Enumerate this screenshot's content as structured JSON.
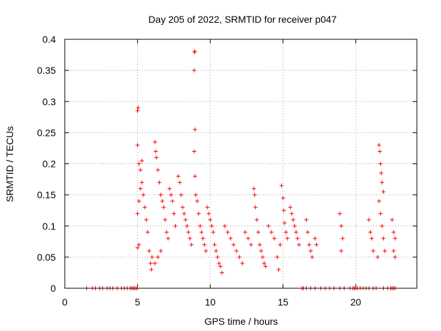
{
  "chart_data": {
    "type": "scatter",
    "title": "Day 205 of 2022, SRMTID for receiver p047",
    "xlabel": "GPS time / hours",
    "ylabel": "SRMTID / TECUs",
    "xlim": [
      0,
      24.2
    ],
    "ylim": [
      0,
      0.4
    ],
    "x_ticks": [
      0,
      5,
      10,
      15,
      20
    ],
    "x_tick_labels": [
      "0",
      "5",
      "10",
      "15",
      "20"
    ],
    "y_ticks": [
      0,
      0.05,
      0.1,
      0.15,
      0.2,
      0.25,
      0.3,
      0.35,
      0.4
    ],
    "y_tick_labels": [
      "0",
      "0.05",
      "0.1",
      "0.15",
      "0.2",
      "0.25",
      "0.3",
      "0.35",
      "0.4"
    ],
    "grid": true,
    "marker": "+",
    "color": "#ff0000",
    "series": [
      {
        "name": "SRMTID",
        "points": [
          [
            1.5,
            0
          ],
          [
            1.9,
            0
          ],
          [
            2.1,
            0
          ],
          [
            2.4,
            0
          ],
          [
            2.6,
            0
          ],
          [
            2.9,
            0
          ],
          [
            3.1,
            0
          ],
          [
            3.3,
            0
          ],
          [
            3.6,
            0
          ],
          [
            3.9,
            0
          ],
          [
            4.1,
            0
          ],
          [
            4.3,
            0
          ],
          [
            4.5,
            0
          ],
          [
            4.6,
            0
          ],
          [
            4.7,
            0
          ],
          [
            4.8,
            0
          ],
          [
            4.9,
            0
          ],
          [
            5.0,
            0
          ],
          [
            16.3,
            0
          ],
          [
            16.4,
            0
          ],
          [
            16.6,
            0
          ],
          [
            16.9,
            0
          ],
          [
            17.2,
            0
          ],
          [
            17.6,
            0
          ],
          [
            17.9,
            0
          ],
          [
            18.2,
            0
          ],
          [
            18.5,
            0
          ],
          [
            18.9,
            0
          ],
          [
            19.2,
            0
          ],
          [
            19.6,
            0
          ],
          [
            19.8,
            0
          ],
          [
            19.9,
            0
          ],
          [
            20.0,
            0
          ],
          [
            20.1,
            0
          ],
          [
            20.3,
            0
          ],
          [
            20.5,
            0
          ],
          [
            20.7,
            0
          ],
          [
            20.9,
            0
          ],
          [
            21.2,
            0
          ],
          [
            21.4,
            0
          ],
          [
            21.9,
            0
          ],
          [
            22.2,
            0
          ],
          [
            22.4,
            0
          ],
          [
            22.5,
            0
          ],
          [
            22.6,
            0
          ],
          [
            22.7,
            0
          ],
          [
            5.0,
            0.285
          ],
          [
            5.05,
            0.29
          ],
          [
            5.0,
            0.23
          ],
          [
            5.1,
            0.2
          ],
          [
            5.2,
            0.19
          ],
          [
            5.3,
            0.205
          ],
          [
            5.0,
            0.065
          ],
          [
            5.1,
            0.07
          ],
          [
            5.0,
            0.12
          ],
          [
            5.1,
            0.14
          ],
          [
            5.2,
            0.16
          ],
          [
            5.3,
            0.17
          ],
          [
            5.4,
            0.15
          ],
          [
            5.5,
            0.13
          ],
          [
            5.6,
            0.11
          ],
          [
            5.7,
            0.09
          ],
          [
            5.8,
            0.06
          ],
          [
            5.9,
            0.04
          ],
          [
            5.95,
            0.03
          ],
          [
            6.0,
            0.05
          ],
          [
            6.2,
            0.235
          ],
          [
            6.25,
            0.22
          ],
          [
            6.3,
            0.21
          ],
          [
            6.4,
            0.19
          ],
          [
            6.5,
            0.17
          ],
          [
            6.6,
            0.15
          ],
          [
            6.7,
            0.14
          ],
          [
            6.8,
            0.13
          ],
          [
            6.9,
            0.11
          ],
          [
            7.0,
            0.09
          ],
          [
            7.1,
            0.08
          ],
          [
            6.2,
            0.04
          ],
          [
            6.4,
            0.05
          ],
          [
            6.6,
            0.06
          ],
          [
            7.2,
            0.16
          ],
          [
            7.3,
            0.15
          ],
          [
            7.4,
            0.14
          ],
          [
            7.5,
            0.12
          ],
          [
            7.6,
            0.1
          ],
          [
            7.8,
            0.18
          ],
          [
            7.9,
            0.17
          ],
          [
            8.0,
            0.15
          ],
          [
            8.1,
            0.13
          ],
          [
            8.2,
            0.12
          ],
          [
            8.3,
            0.11
          ],
          [
            8.4,
            0.1
          ],
          [
            8.5,
            0.09
          ],
          [
            8.6,
            0.08
          ],
          [
            8.7,
            0.07
          ],
          [
            8.9,
            0.38
          ],
          [
            8.95,
            0.38
          ],
          [
            8.9,
            0.35
          ],
          [
            8.95,
            0.255
          ],
          [
            8.9,
            0.22
          ],
          [
            8.95,
            0.18
          ],
          [
            9.0,
            0.15
          ],
          [
            9.1,
            0.14
          ],
          [
            9.2,
            0.12
          ],
          [
            9.3,
            0.1
          ],
          [
            9.4,
            0.09
          ],
          [
            9.5,
            0.08
          ],
          [
            9.6,
            0.07
          ],
          [
            9.7,
            0.06
          ],
          [
            9.8,
            0.13
          ],
          [
            9.9,
            0.12
          ],
          [
            10.0,
            0.11
          ],
          [
            10.1,
            0.1
          ],
          [
            10.2,
            0.09
          ],
          [
            10.3,
            0.07
          ],
          [
            10.4,
            0.06
          ],
          [
            10.5,
            0.05
          ],
          [
            10.6,
            0.04
          ],
          [
            10.7,
            0.035
          ],
          [
            10.8,
            0.025
          ],
          [
            11.0,
            0.1
          ],
          [
            11.2,
            0.09
          ],
          [
            11.4,
            0.08
          ],
          [
            11.6,
            0.07
          ],
          [
            11.8,
            0.06
          ],
          [
            12.0,
            0.05
          ],
          [
            12.2,
            0.04
          ],
          [
            12.4,
            0.09
          ],
          [
            12.6,
            0.08
          ],
          [
            12.8,
            0.07
          ],
          [
            13.0,
            0.16
          ],
          [
            13.05,
            0.15
          ],
          [
            13.1,
            0.13
          ],
          [
            13.2,
            0.11
          ],
          [
            13.3,
            0.09
          ],
          [
            13.4,
            0.07
          ],
          [
            13.5,
            0.06
          ],
          [
            13.6,
            0.05
          ],
          [
            13.7,
            0.04
          ],
          [
            13.8,
            0.035
          ],
          [
            14.0,
            0.1
          ],
          [
            14.2,
            0.09
          ],
          [
            14.4,
            0.08
          ],
          [
            14.6,
            0.05
          ],
          [
            14.7,
            0.03
          ],
          [
            14.8,
            0.07
          ],
          [
            14.9,
            0.165
          ],
          [
            15.0,
            0.145
          ],
          [
            15.05,
            0.125
          ],
          [
            15.1,
            0.105
          ],
          [
            15.2,
            0.09
          ],
          [
            15.3,
            0.08
          ],
          [
            15.5,
            0.13
          ],
          [
            15.6,
            0.12
          ],
          [
            15.7,
            0.11
          ],
          [
            15.8,
            0.1
          ],
          [
            15.9,
            0.09
          ],
          [
            16.0,
            0.08
          ],
          [
            16.1,
            0.07
          ],
          [
            16.6,
            0.11
          ],
          [
            16.7,
            0.09
          ],
          [
            16.8,
            0.07
          ],
          [
            16.9,
            0.06
          ],
          [
            17.0,
            0.05
          ],
          [
            17.2,
            0.08
          ],
          [
            17.3,
            0.07
          ],
          [
            18.9,
            0.12
          ],
          [
            19.0,
            0.1
          ],
          [
            19.1,
            0.08
          ],
          [
            19.0,
            0.06
          ],
          [
            20.9,
            0.11
          ],
          [
            21.0,
            0.09
          ],
          [
            21.1,
            0.08
          ],
          [
            21.2,
            0.06
          ],
          [
            21.6,
            0.23
          ],
          [
            21.65,
            0.22
          ],
          [
            21.7,
            0.2
          ],
          [
            21.75,
            0.185
          ],
          [
            21.8,
            0.17
          ],
          [
            21.9,
            0.155
          ],
          [
            21.6,
            0.14
          ],
          [
            21.7,
            0.12
          ],
          [
            21.8,
            0.1
          ],
          [
            21.9,
            0.08
          ],
          [
            22.0,
            0.06
          ],
          [
            21.5,
            0.05
          ],
          [
            22.5,
            0.11
          ],
          [
            22.6,
            0.09
          ],
          [
            22.7,
            0.08
          ],
          [
            22.6,
            0.06
          ],
          [
            22.7,
            0.05
          ]
        ]
      }
    ]
  }
}
